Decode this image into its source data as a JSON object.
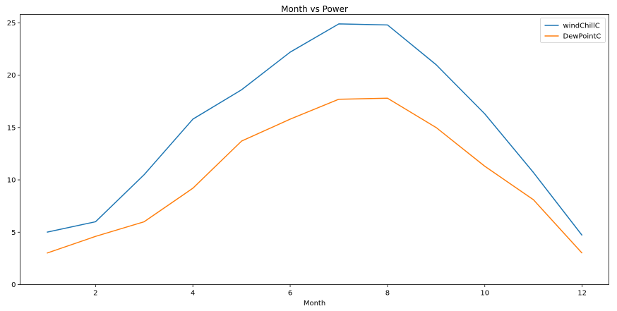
{
  "chart_data": {
    "type": "line",
    "title": "Month vs Power",
    "xlabel": "Month",
    "ylabel": "",
    "x": [
      1,
      2,
      3,
      4,
      5,
      6,
      7,
      8,
      9,
      10,
      11,
      12
    ],
    "xlim": [
      0.45,
      12.55
    ],
    "ylim": [
      0,
      25.8
    ],
    "xticks": [
      2,
      4,
      6,
      8,
      10,
      12
    ],
    "yticks": [
      0,
      5,
      10,
      15,
      20,
      25
    ],
    "grid": false,
    "legend_position": "top-right",
    "series": [
      {
        "name": "windChillC",
        "color": "#1f77b4",
        "values": [
          5.0,
          6.0,
          10.5,
          15.8,
          18.6,
          22.2,
          24.9,
          24.8,
          21.0,
          16.3,
          10.7,
          4.7
        ]
      },
      {
        "name": "DewPointC",
        "color": "#ff7f0e",
        "values": [
          3.0,
          4.6,
          6.0,
          9.2,
          13.7,
          15.8,
          17.7,
          17.8,
          15.0,
          11.3,
          8.1,
          3.0
        ]
      }
    ]
  }
}
